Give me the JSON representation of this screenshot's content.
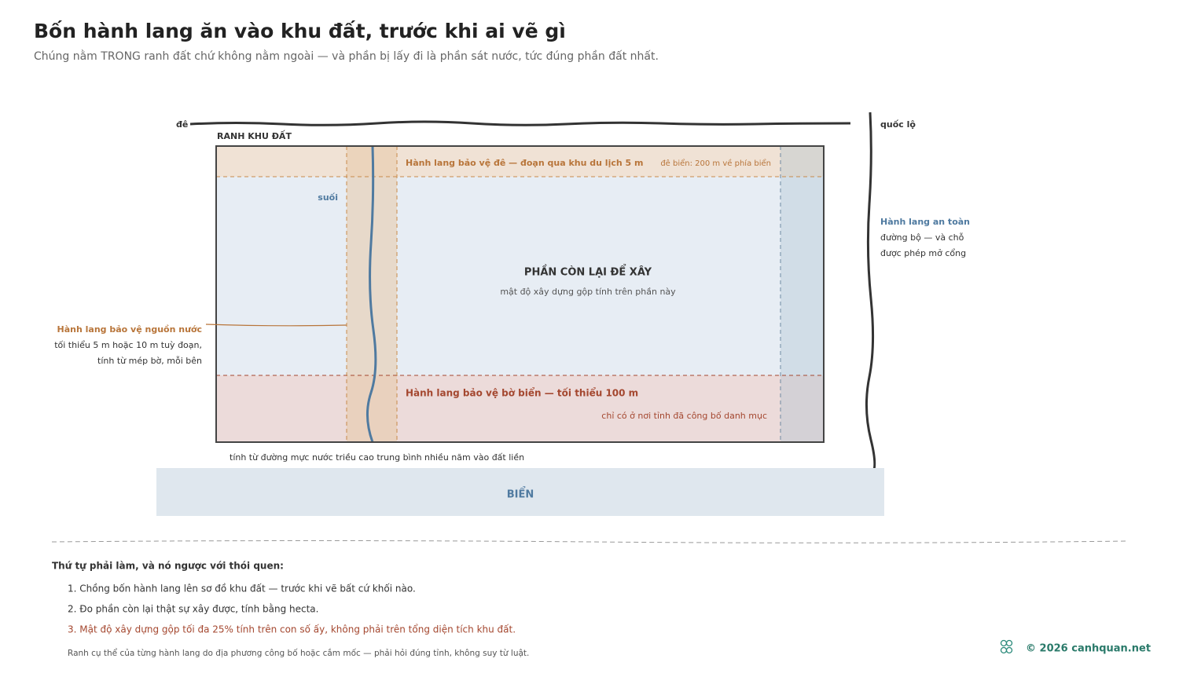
{
  "header": {
    "title": "Bốn hành lang ăn vào khu đất, trước khi ai vẽ gì",
    "subtitle": "Chúng nằm TRONG ranh đất chứ không nằm ngoài — và phần bị lấy đi là phần sát nước, tức đúng phần đất nhất."
  },
  "diagram": {
    "dike_label": "đê",
    "road_label": "quốc lộ",
    "site_label": "RANH KHU ĐẤT",
    "dike_corridor": {
      "label": "Hành lang bảo vệ đê — đoạn qua khu du lịch 5 m",
      "note": "đê biển: 200 m về phía biển"
    },
    "stream_label": "suối",
    "buildable": {
      "label": "PHẦN CÒN LẠI ĐỂ XÂY",
      "note": "mật độ xây dựng gộp tính trên phần này"
    },
    "water_corridor": {
      "label": "Hành lang bảo vệ nguồn nước",
      "lines": [
        "tối thiểu 5 m hoặc 10 m tuỳ đoạn,",
        "tính từ mép bờ, mỗi bên"
      ]
    },
    "coast_corridor": {
      "label": "Hành lang bảo vệ bờ biển — tối thiểu 100 m",
      "note": "chỉ có ở nơi tỉnh đã công bố danh mục"
    },
    "coast_measure": "tính từ đường mực nước triều cao trung bình nhiều năm vào đất liền",
    "sea_label": "BIỂN",
    "road_corridor": {
      "label": "Hành lang an toàn",
      "lines": [
        "đường bộ — và chỗ",
        "được phép mở cổng"
      ]
    }
  },
  "steps": {
    "heading": "Thứ tự phải làm, và nó ngược với thói quen:",
    "items": [
      "1. Chồng bốn hành lang lên sơ đồ khu đất — trước khi vẽ bất cứ khối nào.",
      "2. Đo phần còn lại thật sự xây được, tính bằng hecta.",
      "3. Mật độ xây dựng gộp tối đa 25% tính trên con số ấy, không phải trên tổng diện tích khu đất."
    ],
    "note": "Ranh cụ thể của từng hành lang do địa phương công bố hoặc cắm mốc — phải hỏi đúng tỉnh, không suy từ luật."
  },
  "footer": {
    "credit": "© 2026 canhquan.net"
  }
}
